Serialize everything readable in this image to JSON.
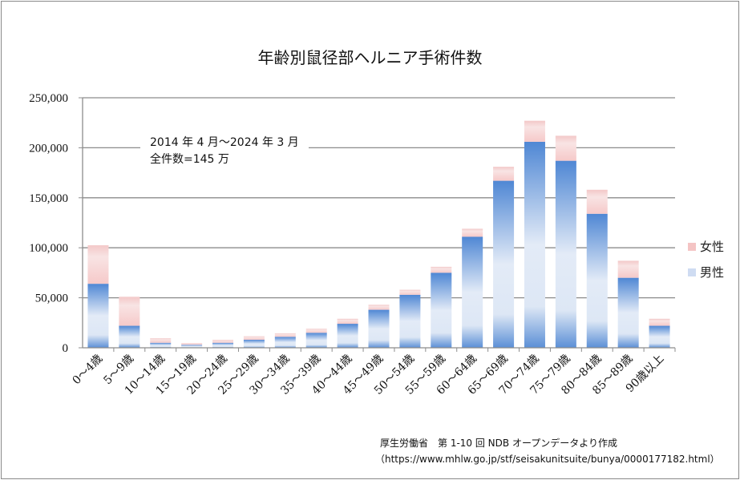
{
  "chart_data": {
    "type": "bar",
    "stacked": true,
    "title": "年齢別鼠径部ヘルニア手術件数",
    "annotation": [
      "2014 年 4 月～2024 年 3 月",
      "全件数=145 万"
    ],
    "categories": [
      "0～4歳",
      "5～9歳",
      "10～14歳",
      "15～19歳",
      "20～24歳",
      "25～29歳",
      "30～34歳",
      "35～39歳",
      "40～44歳",
      "45～49歳",
      "50～54歳",
      "55～59歳",
      "60～64歳",
      "65～69歳",
      "70～74歳",
      "75～79歳",
      "80～84歳",
      "85～89歳",
      "90歳以上"
    ],
    "series": [
      {
        "name": "男性",
        "color": "#5b8fd6",
        "values": [
          64000,
          22000,
          5000,
          3000,
          5000,
          8000,
          11000,
          15000,
          24000,
          38000,
          53000,
          75000,
          111000,
          167000,
          206000,
          187000,
          134000,
          70000,
          22000
        ]
      },
      {
        "name": "女性",
        "color": "#f4c4c4",
        "values": [
          38500,
          29000,
          4500,
          1800,
          3000,
          3500,
          3500,
          4000,
          5000,
          5000,
          5000,
          6000,
          8000,
          14000,
          21000,
          25000,
          24000,
          17000,
          7000
        ]
      }
    ],
    "ylim": [
      0,
      250000
    ],
    "yticks": [
      "0",
      "50,000",
      "100,000",
      "150,000",
      "200,000",
      "250,000"
    ],
    "grid": true,
    "legend": "right"
  },
  "source": [
    "厚生労働省　第 1-10 回 NDB オープンデータより作成",
    "（https://www.mhlw.go.jp/stf/seisakunitsuite/bunya/0000177182.html）"
  ]
}
